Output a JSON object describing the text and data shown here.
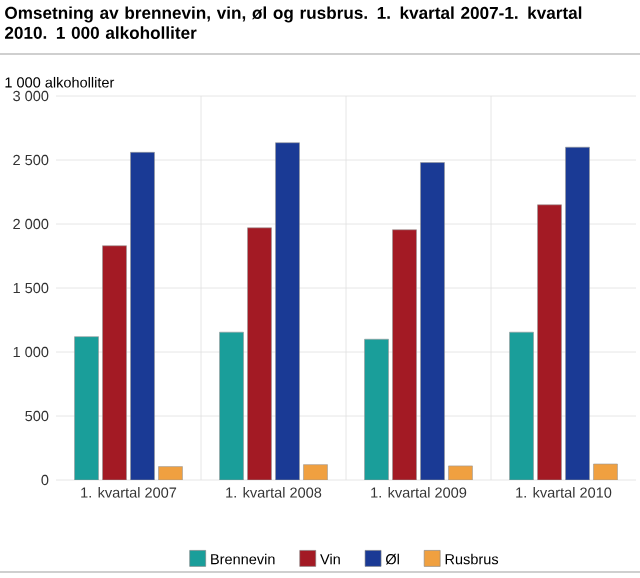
{
  "chart_data": {
    "type": "bar",
    "title": "Omsetning av brennevin, vin, øl og rusbrus. 1. kvartal 2007-1. kvartal 2010. 1 000 alkoholliter",
    "ylabel": "1 000 alkoholliter",
    "categories": [
      "1. kvartal 2007",
      "1. kvartal 2008",
      "1. kvartal 2009",
      "1. kvartal 2010"
    ],
    "series": [
      {
        "name": "Brennevin",
        "color": "#1a9e9a",
        "values": [
          1120,
          1155,
          1100,
          1155
        ]
      },
      {
        "name": "Vin",
        "color": "#a31a24",
        "values": [
          1830,
          1970,
          1955,
          2150
        ]
      },
      {
        "name": "Øl",
        "color": "#1a3a95",
        "values": [
          2560,
          2635,
          2480,
          2600
        ]
      },
      {
        "name": "Rusbrus",
        "color": "#f0a040",
        "values": [
          105,
          120,
          110,
          125
        ]
      }
    ],
    "ylim": [
      0,
      3000
    ],
    "yticks": [
      0,
      500,
      {
        "value": 1000,
        "label": "1 000"
      },
      {
        "value": 1500,
        "label": "1 500"
      },
      {
        "value": 2000,
        "label": "2 000"
      },
      {
        "value": 2500,
        "label": "2 500"
      },
      {
        "value": 3000,
        "label": "3 000"
      }
    ],
    "grid": true,
    "legend": "bottom"
  }
}
